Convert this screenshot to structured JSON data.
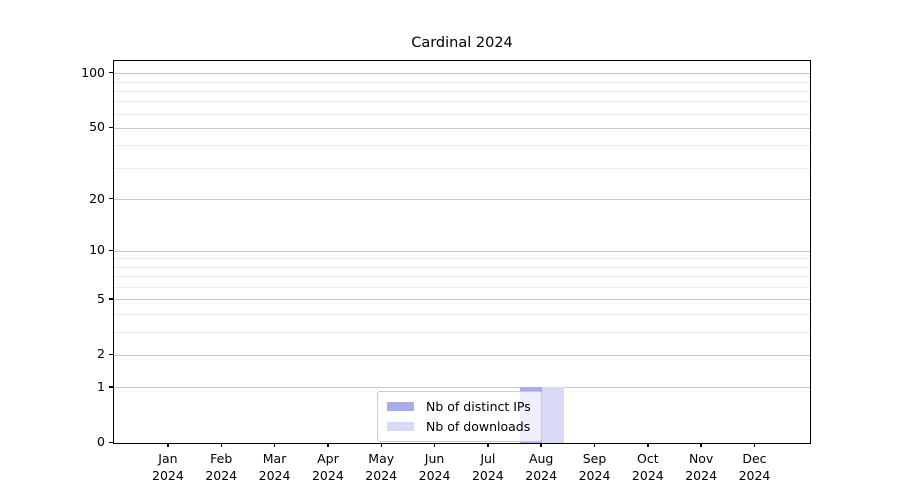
{
  "title": "Cardinal 2024",
  "legend": {
    "items": [
      {
        "label": "Nb of distinct IPs",
        "color": "#a8abee"
      },
      {
        "label": "Nb of downloads",
        "color": "#d8daf6"
      }
    ]
  },
  "chart_data": {
    "type": "bar",
    "title": "Cardinal 2024",
    "categories": [
      "Jan 2024",
      "Feb 2024",
      "Mar 2024",
      "Apr 2024",
      "May 2024",
      "Jun 2024",
      "Jul 2024",
      "Aug 2024",
      "Sep 2024",
      "Oct 2024",
      "Nov 2024",
      "Dec 2024"
    ],
    "x_tick_line1": [
      "Jan",
      "Feb",
      "Mar",
      "Apr",
      "May",
      "Jun",
      "Jul",
      "Aug",
      "Sep",
      "Oct",
      "Nov",
      "Dec"
    ],
    "x_tick_line2": [
      "2024",
      "2024",
      "2024",
      "2024",
      "2024",
      "2024",
      "2024",
      "2024",
      "2024",
      "2024",
      "2024",
      "2024"
    ],
    "series": [
      {
        "name": "Nb of distinct IPs",
        "color": "#a8abee",
        "values": [
          0,
          0,
          0,
          0,
          0,
          0,
          0,
          1,
          0,
          0,
          0,
          0
        ]
      },
      {
        "name": "Nb of downloads",
        "color": "#d8daf6",
        "values": [
          0,
          0,
          0,
          0,
          0,
          0,
          0,
          1,
          0,
          0,
          0,
          0
        ]
      }
    ],
    "yscale": "log1p",
    "ylim": [
      0,
      115
    ],
    "y_major_ticks": [
      0,
      1,
      2,
      5,
      10,
      20,
      50,
      100
    ],
    "y_minor_gridlines": [
      3,
      4,
      6,
      7,
      8,
      9,
      30,
      40,
      60,
      70,
      80,
      90
    ],
    "grid": "horizontal",
    "legend_position": "lower center"
  },
  "colors": {
    "major_grid": "#c9c9c9",
    "minor_grid": "#ebebeb",
    "axis": "#000000",
    "background": "#ffffff"
  }
}
